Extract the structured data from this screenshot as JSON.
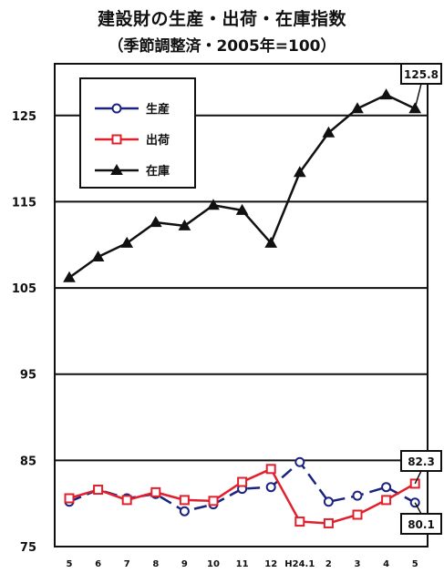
{
  "chart_data": {
    "type": "line",
    "title": "建設財の生産・出荷・在庫指数",
    "subtitle": "（季節調整済・2005年=100）",
    "categories": [
      "5",
      "6",
      "7",
      "8",
      "9",
      "10",
      "11",
      "12",
      "H24.1",
      "2",
      "3",
      "4",
      "5"
    ],
    "ylim": [
      75,
      131
    ],
    "yticks": [
      75,
      85,
      95,
      105,
      115,
      125
    ],
    "grid": true,
    "legend_position": "top-left",
    "series": [
      {
        "name": "生産",
        "color": "#1a237e",
        "marker": "circle",
        "dashed": true,
        "values": [
          80.2,
          81.6,
          80.6,
          81.1,
          79.1,
          79.9,
          81.7,
          81.9,
          84.8,
          80.2,
          80.9,
          81.9,
          80.1
        ]
      },
      {
        "name": "出荷",
        "color": "#e0202c",
        "marker": "square",
        "dashed": false,
        "values": [
          80.6,
          81.6,
          80.4,
          81.3,
          80.4,
          80.3,
          82.5,
          84.0,
          77.9,
          77.7,
          78.7,
          80.4,
          82.3
        ]
      },
      {
        "name": "在庫",
        "color": "#111111",
        "marker": "triangle",
        "dashed": false,
        "values": [
          106.2,
          108.6,
          110.2,
          112.6,
          112.2,
          114.6,
          114.0,
          110.2,
          118.4,
          123.0,
          125.8,
          127.4,
          125.8
        ]
      }
    ],
    "annotations": [
      "125.8",
      "82.3",
      "80.1"
    ]
  }
}
